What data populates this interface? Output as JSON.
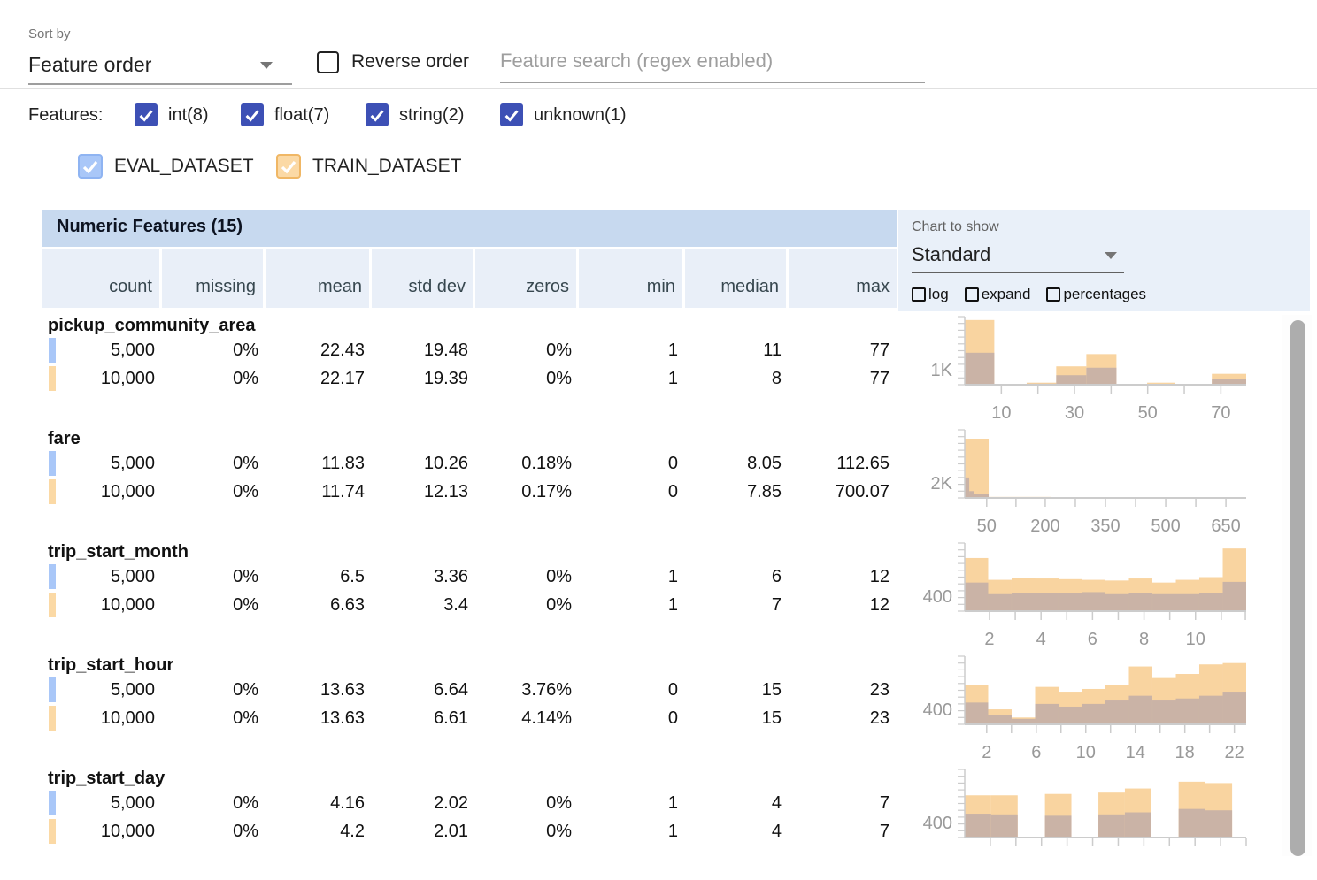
{
  "toolbar": {
    "sort_by_label": "Sort by",
    "sort_value": "Feature order",
    "reverse_label": "Reverse order",
    "search_placeholder": "Feature search (regex enabled)"
  },
  "filters": {
    "label": "Features:",
    "checkbox_color": "#3d50b5",
    "items": [
      {
        "label": "int(8)",
        "checked": true
      },
      {
        "label": "float(7)",
        "checked": true
      },
      {
        "label": "string(2)",
        "checked": true
      },
      {
        "label": "unknown(1)",
        "checked": true
      }
    ]
  },
  "datasets": [
    {
      "name": "EVAL_DATASET",
      "color": "#a9c7f8",
      "border": "#8fb4f2",
      "checked": true
    },
    {
      "name": "TRAIN_DATASET",
      "color": "#fbd9a5",
      "border": "#f0b765",
      "checked": true
    }
  ],
  "table": {
    "title": "Numeric Features (15)",
    "columns": [
      "count",
      "missing",
      "mean",
      "std dev",
      "zeros",
      "min",
      "median",
      "max"
    ],
    "features": [
      {
        "name": "pickup_community_area",
        "rows": [
          [
            "5,000",
            "0%",
            "22.43",
            "19.48",
            "0%",
            "1",
            "11",
            "77"
          ],
          [
            "10,000",
            "0%",
            "22.17",
            "19.39",
            "0%",
            "1",
            "8",
            "77"
          ]
        ]
      },
      {
        "name": "fare",
        "rows": [
          [
            "5,000",
            "0%",
            "11.83",
            "10.26",
            "0.18%",
            "0",
            "8.05",
            "112.65"
          ],
          [
            "10,000",
            "0%",
            "11.74",
            "12.13",
            "0.17%",
            "0",
            "7.85",
            "700.07"
          ]
        ]
      },
      {
        "name": "trip_start_month",
        "rows": [
          [
            "5,000",
            "0%",
            "6.5",
            "3.36",
            "0%",
            "1",
            "6",
            "12"
          ],
          [
            "10,000",
            "0%",
            "6.63",
            "3.4",
            "0%",
            "1",
            "7",
            "12"
          ]
        ]
      },
      {
        "name": "trip_start_hour",
        "rows": [
          [
            "5,000",
            "0%",
            "13.63",
            "6.64",
            "3.76%",
            "0",
            "15",
            "23"
          ],
          [
            "10,000",
            "0%",
            "13.63",
            "6.61",
            "4.14%",
            "0",
            "15",
            "23"
          ]
        ]
      },
      {
        "name": "trip_start_day",
        "rows": [
          [
            "5,000",
            "0%",
            "4.16",
            "2.02",
            "0%",
            "1",
            "4",
            "7"
          ],
          [
            "10,000",
            "0%",
            "4.2",
            "2.01",
            "0%",
            "1",
            "4",
            "7"
          ]
        ]
      }
    ]
  },
  "chart_panel": {
    "title": "Chart to show",
    "selected": "Standard",
    "options": [
      {
        "label": "log",
        "checked": false
      },
      {
        "label": "expand",
        "checked": false
      },
      {
        "label": "percentages",
        "checked": false
      }
    ]
  },
  "chart_colors": {
    "train": "#f9d4a0",
    "overlap": "#cab3a6",
    "axis": "#cccccc",
    "tick_label": "#999999"
  },
  "chart_data": [
    {
      "type": "histogram-overlay",
      "feature": "pickup_community_area",
      "ylabel": "1K",
      "series": [
        "EVAL_DATASET",
        "TRAIN_DATASET"
      ],
      "bars": [
        {
          "x": 0.0,
          "w": 0.105,
          "t": 0.95,
          "o": 0.47
        },
        {
          "x": 0.105,
          "w": 0.105,
          "t": 0.012,
          "o": 0.008
        },
        {
          "x": 0.22,
          "w": 0.105,
          "t": 0.03,
          "o": 0.015
        },
        {
          "x": 0.325,
          "w": 0.107,
          "t": 0.27,
          "o": 0.14
        },
        {
          "x": 0.432,
          "w": 0.107,
          "t": 0.45,
          "o": 0.25
        },
        {
          "x": 0.648,
          "w": 0.1,
          "t": 0.03,
          "o": 0.01
        },
        {
          "x": 0.878,
          "w": 0.122,
          "t": 0.16,
          "o": 0.08
        }
      ],
      "ticks": [
        {
          "x": 0.13,
          "l": "10"
        },
        {
          "x": 0.26,
          "l": ""
        },
        {
          "x": 0.39,
          "l": "30"
        },
        {
          "x": 0.52,
          "l": ""
        },
        {
          "x": 0.65,
          "l": "50"
        },
        {
          "x": 0.78,
          "l": ""
        },
        {
          "x": 0.91,
          "l": "70"
        }
      ]
    },
    {
      "type": "histogram-overlay",
      "feature": "fare",
      "ylabel": "2K",
      "series": [
        "EVAL_DATASET",
        "TRAIN_DATASET"
      ],
      "bars": [
        {
          "x": 0.0,
          "w": 0.085,
          "t": 0.87,
          "o": 0.06
        },
        {
          "x": 0.0,
          "w": 0.016,
          "t": 0.0,
          "o": 0.3
        },
        {
          "x": 0.016,
          "w": 0.016,
          "t": 0.0,
          "o": 0.1
        },
        {
          "x": 0.032,
          "w": 0.02,
          "t": 0.0,
          "o": 0.035
        },
        {
          "x": 0.085,
          "w": 0.22,
          "t": 0.015,
          "o": 0.0
        }
      ],
      "ticks": [
        {
          "x": 0.078,
          "l": "50"
        },
        {
          "x": 0.182,
          "l": ""
        },
        {
          "x": 0.286,
          "l": "200"
        },
        {
          "x": 0.393,
          "l": ""
        },
        {
          "x": 0.5,
          "l": "350"
        },
        {
          "x": 0.607,
          "l": ""
        },
        {
          "x": 0.714,
          "l": "500"
        },
        {
          "x": 0.821,
          "l": ""
        },
        {
          "x": 0.928,
          "l": "650"
        }
      ]
    },
    {
      "type": "histogram-overlay",
      "feature": "trip_start_month",
      "ylabel": "400",
      "series": [
        "EVAL_DATASET",
        "TRAIN_DATASET"
      ],
      "bars": [
        {
          "x": 0.0,
          "w": 0.0833,
          "t": 0.78,
          "o": 0.42
        },
        {
          "x": 0.0833,
          "w": 0.0833,
          "t": 0.46,
          "o": 0.25
        },
        {
          "x": 0.1667,
          "w": 0.0833,
          "t": 0.49,
          "o": 0.26
        },
        {
          "x": 0.25,
          "w": 0.0833,
          "t": 0.48,
          "o": 0.26
        },
        {
          "x": 0.3333,
          "w": 0.0833,
          "t": 0.47,
          "o": 0.27
        },
        {
          "x": 0.4167,
          "w": 0.0833,
          "t": 0.46,
          "o": 0.28
        },
        {
          "x": 0.5,
          "w": 0.0833,
          "t": 0.45,
          "o": 0.25
        },
        {
          "x": 0.5833,
          "w": 0.0833,
          "t": 0.48,
          "o": 0.26
        },
        {
          "x": 0.6667,
          "w": 0.0833,
          "t": 0.42,
          "o": 0.25
        },
        {
          "x": 0.75,
          "w": 0.0833,
          "t": 0.46,
          "o": 0.25
        },
        {
          "x": 0.8333,
          "w": 0.0833,
          "t": 0.5,
          "o": 0.26
        },
        {
          "x": 0.9167,
          "w": 0.0833,
          "t": 0.92,
          "o": 0.43
        }
      ],
      "ticks": [
        {
          "x": 0.088,
          "l": "2"
        },
        {
          "x": 0.1795,
          "l": ""
        },
        {
          "x": 0.271,
          "l": "4"
        },
        {
          "x": 0.3625,
          "l": ""
        },
        {
          "x": 0.454,
          "l": "6"
        },
        {
          "x": 0.5455,
          "l": ""
        },
        {
          "x": 0.637,
          "l": "8"
        },
        {
          "x": 0.7285,
          "l": ""
        },
        {
          "x": 0.82,
          "l": "10"
        },
        {
          "x": 0.9115,
          "l": ""
        },
        {
          "x": 0.997,
          "l": ""
        }
      ]
    },
    {
      "type": "histogram-overlay",
      "feature": "trip_start_hour",
      "ylabel": "400",
      "series": [
        "EVAL_DATASET",
        "TRAIN_DATASET"
      ],
      "bars": [
        {
          "x": 0.0,
          "w": 0.0833,
          "t": 0.58,
          "o": 0.32
        },
        {
          "x": 0.0833,
          "w": 0.0833,
          "t": 0.22,
          "o": 0.14
        },
        {
          "x": 0.1667,
          "w": 0.0833,
          "t": 0.1,
          "o": 0.08
        },
        {
          "x": 0.25,
          "w": 0.0833,
          "t": 0.55,
          "o": 0.3
        },
        {
          "x": 0.3333,
          "w": 0.0833,
          "t": 0.48,
          "o": 0.26
        },
        {
          "x": 0.4167,
          "w": 0.0833,
          "t": 0.52,
          "o": 0.3
        },
        {
          "x": 0.5,
          "w": 0.0833,
          "t": 0.58,
          "o": 0.35
        },
        {
          "x": 0.5833,
          "w": 0.0833,
          "t": 0.85,
          "o": 0.42
        },
        {
          "x": 0.6667,
          "w": 0.0833,
          "t": 0.68,
          "o": 0.35
        },
        {
          "x": 0.75,
          "w": 0.0833,
          "t": 0.74,
          "o": 0.38
        },
        {
          "x": 0.8333,
          "w": 0.0833,
          "t": 0.88,
          "o": 0.42
        },
        {
          "x": 0.9167,
          "w": 0.0833,
          "t": 0.9,
          "o": 0.48
        }
      ],
      "ticks": [
        {
          "x": 0.078,
          "l": "2"
        },
        {
          "x": 0.166,
          "l": ""
        },
        {
          "x": 0.254,
          "l": "6"
        },
        {
          "x": 0.342,
          "l": ""
        },
        {
          "x": 0.43,
          "l": "10"
        },
        {
          "x": 0.518,
          "l": ""
        },
        {
          "x": 0.606,
          "l": "14"
        },
        {
          "x": 0.694,
          "l": ""
        },
        {
          "x": 0.782,
          "l": "18"
        },
        {
          "x": 0.87,
          "l": ""
        },
        {
          "x": 0.958,
          "l": "22"
        }
      ]
    },
    {
      "type": "histogram-overlay",
      "feature": "trip_start_day",
      "ylabel": "400",
      "series": [
        "EVAL_DATASET",
        "TRAIN_DATASET"
      ],
      "bars": [
        {
          "x": 0.0,
          "w": 0.094,
          "t": 0.62,
          "o": 0.35
        },
        {
          "x": 0.094,
          "w": 0.094,
          "t": 0.62,
          "o": 0.34
        },
        {
          "x": 0.285,
          "w": 0.094,
          "t": 0.64,
          "o": 0.32
        },
        {
          "x": 0.475,
          "w": 0.094,
          "t": 0.66,
          "o": 0.34
        },
        {
          "x": 0.569,
          "w": 0.094,
          "t": 0.72,
          "o": 0.37
        },
        {
          "x": 0.76,
          "w": 0.094,
          "t": 0.82,
          "o": 0.42
        },
        {
          "x": 0.854,
          "w": 0.096,
          "t": 0.8,
          "o": 0.4
        }
      ],
      "ticks": [
        {
          "x": 0.0909,
          "l": ""
        },
        {
          "x": 0.1818,
          "l": ""
        },
        {
          "x": 0.2727,
          "l": ""
        },
        {
          "x": 0.3636,
          "l": ""
        },
        {
          "x": 0.4545,
          "l": ""
        },
        {
          "x": 0.5455,
          "l": ""
        },
        {
          "x": 0.6364,
          "l": ""
        },
        {
          "x": 0.7273,
          "l": ""
        },
        {
          "x": 0.8182,
          "l": ""
        },
        {
          "x": 0.9091,
          "l": ""
        },
        {
          "x": 1.0,
          "l": ""
        }
      ]
    }
  ]
}
